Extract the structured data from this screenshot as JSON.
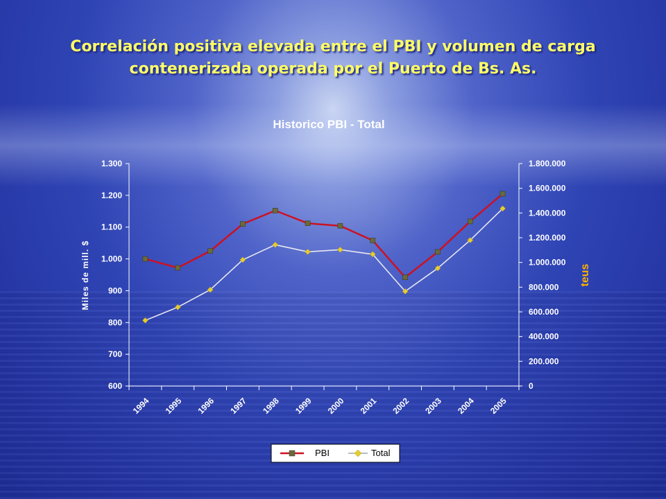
{
  "slide": {
    "title_line1": "Correlación positiva elevada entre el PBI y volumen de carga",
    "title_line2": "contenerizada operada por el Puerto de Bs. As."
  },
  "chart_data": {
    "type": "line",
    "title": "Historico PBI - Total",
    "ylabel": "Miles de mill. $",
    "y2label": "teus",
    "categories": [
      "1994",
      "1995",
      "1996",
      "1997",
      "1998",
      "1999",
      "2000",
      "2001",
      "2002",
      "2003",
      "2004",
      "2005"
    ],
    "ylim": [
      600,
      1300
    ],
    "y_ticks": [
      "600",
      "700",
      "800",
      "900",
      "1.000",
      "1.100",
      "1.200",
      "1.300"
    ],
    "y2lim": [
      0,
      1800000
    ],
    "y2_ticks": [
      "0",
      "200.000",
      "400.000",
      "600.000",
      "800.000",
      "1.000.000",
      "1.200.000",
      "1.400.000",
      "1.600.000",
      "1.800.000"
    ],
    "series": [
      {
        "name": "PBI",
        "axis": "left",
        "color": "#cc1122",
        "marker": "square",
        "values": [
          1000,
          972,
          1025,
          1110,
          1152,
          1112,
          1104,
          1058,
          942,
          1022,
          1118,
          1205
        ]
      },
      {
        "name": "Total",
        "axis": "right",
        "color": "#e8e8f0",
        "marker": "diamond",
        "values": [
          531000,
          638000,
          779000,
          1021000,
          1143000,
          1086000,
          1103000,
          1066000,
          766000,
          953000,
          1180000,
          1436000
        ]
      }
    ],
    "legend": "bottom",
    "grid": false
  }
}
